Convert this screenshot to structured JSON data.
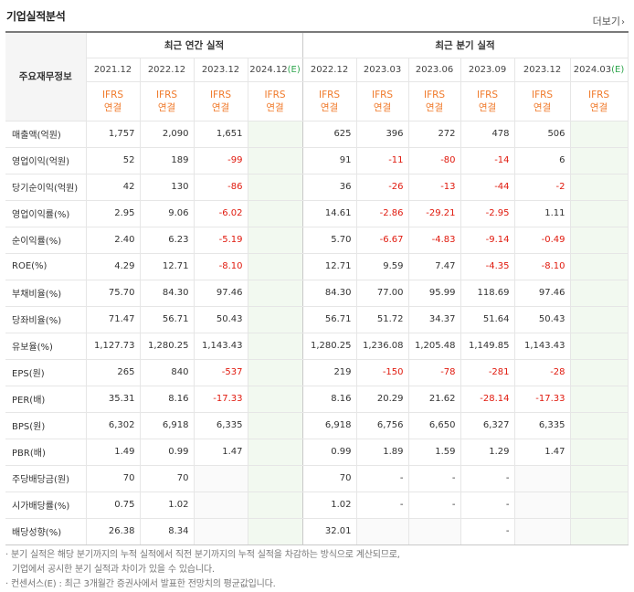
{
  "header": {
    "title": "기업실적분석",
    "more": "더보기",
    "more_arrow": "›"
  },
  "table": {
    "row_header_label": "주요재무정보",
    "group_annual": "최근 연간 실적",
    "group_quarter": "최근 분기 실적",
    "periods": [
      {
        "label": "2021.12",
        "suffix": "",
        "ifrs": "IFRS",
        "basis": "연결"
      },
      {
        "label": "2022.12",
        "suffix": "",
        "ifrs": "IFRS",
        "basis": "연결"
      },
      {
        "label": "2023.12",
        "suffix": "",
        "ifrs": "IFRS",
        "basis": "연결"
      },
      {
        "label": "2024.12",
        "suffix": "(E)",
        "ifrs": "IFRS",
        "basis": "연결"
      },
      {
        "label": "2022.12",
        "suffix": "",
        "ifrs": "IFRS",
        "basis": "연결"
      },
      {
        "label": "2023.03",
        "suffix": "",
        "ifrs": "IFRS",
        "basis": "연결"
      },
      {
        "label": "2023.06",
        "suffix": "",
        "ifrs": "IFRS",
        "basis": "연결"
      },
      {
        "label": "2023.09",
        "suffix": "",
        "ifrs": "IFRS",
        "basis": "연결"
      },
      {
        "label": "2023.12",
        "suffix": "",
        "ifrs": "IFRS",
        "basis": "연결"
      },
      {
        "label": "2024.03",
        "suffix": "(E)",
        "ifrs": "IFRS",
        "basis": "연결"
      }
    ],
    "rows": [
      {
        "label": "매출액(억원)",
        "values": [
          "1,757",
          "2,090",
          "1,651",
          "",
          "625",
          "396",
          "272",
          "478",
          "506",
          ""
        ]
      },
      {
        "label": "영업이익(억원)",
        "values": [
          "52",
          "189",
          "-99",
          "",
          "91",
          "-11",
          "-80",
          "-14",
          "6",
          ""
        ]
      },
      {
        "label": "당기순이익(억원)",
        "values": [
          "42",
          "130",
          "-86",
          "",
          "36",
          "-26",
          "-13",
          "-44",
          "-2",
          ""
        ]
      },
      {
        "label": "영업이익률(%)",
        "values": [
          "2.95",
          "9.06",
          "-6.02",
          "",
          "14.61",
          "-2.86",
          "-29.21",
          "-2.95",
          "1.11",
          ""
        ]
      },
      {
        "label": "순이익률(%)",
        "values": [
          "2.40",
          "6.23",
          "-5.19",
          "",
          "5.70",
          "-6.67",
          "-4.83",
          "-9.14",
          "-0.49",
          ""
        ]
      },
      {
        "label": "ROE(%)",
        "values": [
          "4.29",
          "12.71",
          "-8.10",
          "",
          "12.71",
          "9.59",
          "7.47",
          "-4.35",
          "-8.10",
          ""
        ]
      },
      {
        "label": "부채비율(%)",
        "values": [
          "75.70",
          "84.30",
          "97.46",
          "",
          "84.30",
          "77.00",
          "95.99",
          "118.69",
          "97.46",
          ""
        ]
      },
      {
        "label": "당좌비율(%)",
        "values": [
          "71.47",
          "56.71",
          "50.43",
          "",
          "56.71",
          "51.72",
          "34.37",
          "51.64",
          "50.43",
          ""
        ]
      },
      {
        "label": "유보율(%)",
        "values": [
          "1,127.73",
          "1,280.25",
          "1,143.43",
          "",
          "1,280.25",
          "1,236.08",
          "1,205.48",
          "1,149.85",
          "1,143.43",
          ""
        ]
      },
      {
        "label": "EPS(원)",
        "values": [
          "265",
          "840",
          "-537",
          "",
          "219",
          "-150",
          "-78",
          "-281",
          "-28",
          ""
        ]
      },
      {
        "label": "PER(배)",
        "values": [
          "35.31",
          "8.16",
          "-17.33",
          "",
          "8.16",
          "20.29",
          "21.62",
          "-28.14",
          "-17.33",
          ""
        ]
      },
      {
        "label": "BPS(원)",
        "values": [
          "6,302",
          "6,918",
          "6,335",
          "",
          "6,918",
          "6,756",
          "6,650",
          "6,327",
          "6,335",
          ""
        ]
      },
      {
        "label": "PBR(배)",
        "values": [
          "1.49",
          "0.99",
          "1.47",
          "",
          "0.99",
          "1.89",
          "1.59",
          "1.29",
          "1.47",
          ""
        ]
      },
      {
        "label": "주당배당금(원)",
        "values": [
          "70",
          "70",
          "",
          "",
          "70",
          "-",
          "-",
          "-",
          "",
          ""
        ]
      },
      {
        "label": "시가배당률(%)",
        "values": [
          "0.75",
          "1.02",
          "",
          "",
          "1.02",
          "-",
          "-",
          "-",
          "",
          ""
        ]
      },
      {
        "label": "배당성향(%)",
        "values": [
          "26.38",
          "8.34",
          "",
          "",
          "32.01",
          "",
          "",
          "-",
          "",
          ""
        ]
      }
    ]
  },
  "notes": [
    "분기 실적은 해당 분기까지의 누적 실적에서 직전 분기까지의 누적 실적을 차감하는 방식으로 계산되므로,",
    "기업에서 공시한 분기 실적과 차이가 있을 수 있습니다.",
    "컨센서스(E) : 최근 3개월간 증권사에서 발표한 전망치의 평균값입니다."
  ],
  "colors": {
    "ifrs": "#f07a2b",
    "estimate": "#2da54b",
    "negative": "#e0190d",
    "estimate_bg": "#f2f9f0"
  }
}
